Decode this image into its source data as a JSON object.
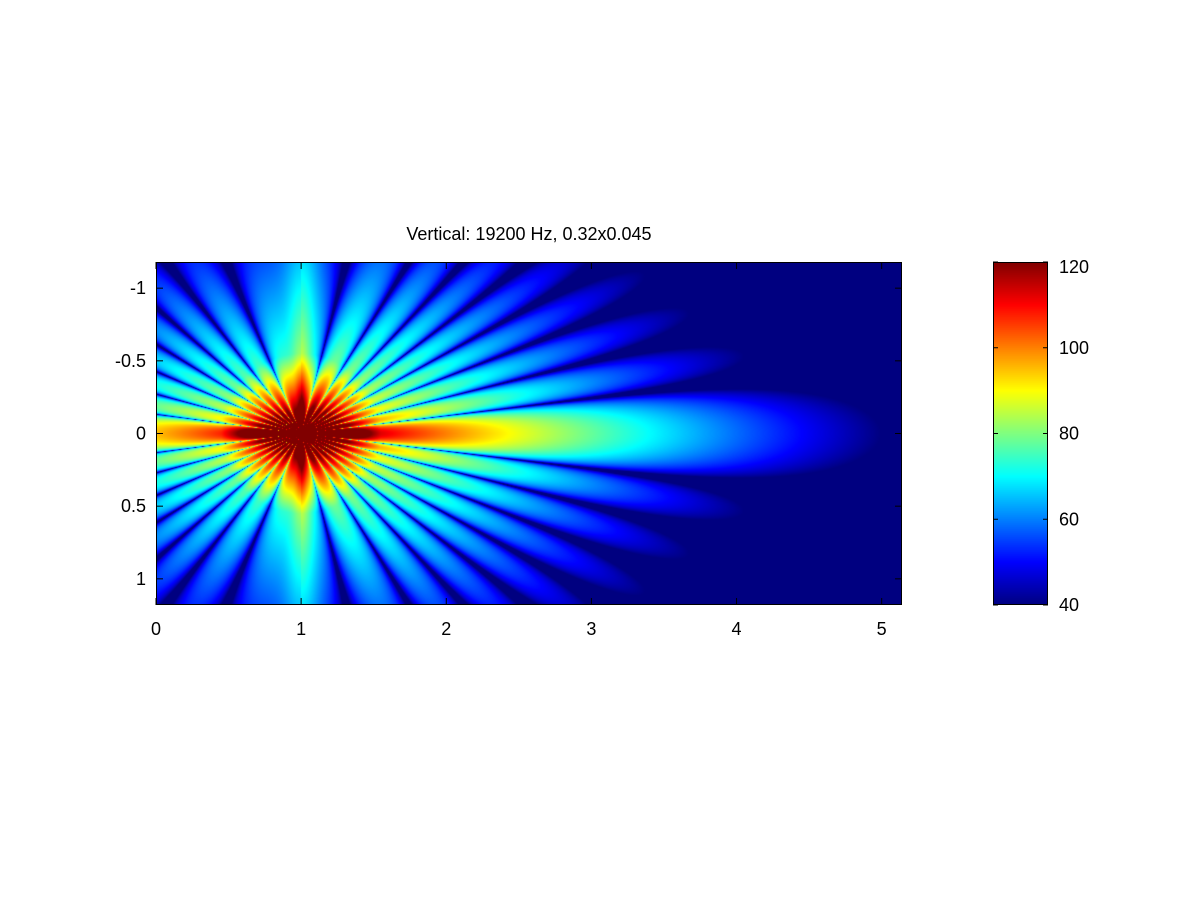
{
  "chart_data": {
    "type": "heatmap",
    "title": "Vertical: 19200 Hz, 0.32x0.045",
    "xlabel": "",
    "ylabel": "",
    "xlim": [
      0,
      5.14
    ],
    "ylim": [
      1.18,
      -1.18
    ],
    "y_reversed": true,
    "x_ticks": [
      {
        "value": 0,
        "label": "0"
      },
      {
        "value": 1,
        "label": "1"
      },
      {
        "value": 2,
        "label": "2"
      },
      {
        "value": 3,
        "label": "3"
      },
      {
        "value": 4,
        "label": "4"
      },
      {
        "value": 5,
        "label": "5"
      }
    ],
    "y_ticks": [
      {
        "value": -1,
        "label": "-1"
      },
      {
        "value": -0.5,
        "label": "-0.5"
      },
      {
        "value": 0,
        "label": "0"
      },
      {
        "value": 0.5,
        "label": "0.5"
      },
      {
        "value": 1,
        "label": "1"
      }
    ],
    "colormap": "jet",
    "clim": [
      40,
      120
    ],
    "colorbar_ticks": [
      {
        "value": 40,
        "label": "40"
      },
      {
        "value": 60,
        "label": "60"
      },
      {
        "value": 80,
        "label": "80"
      },
      {
        "value": 100,
        "label": "100"
      },
      {
        "value": 120,
        "label": "120"
      }
    ],
    "source_x": 1.0,
    "source_y": 0.0,
    "grid": false
  }
}
